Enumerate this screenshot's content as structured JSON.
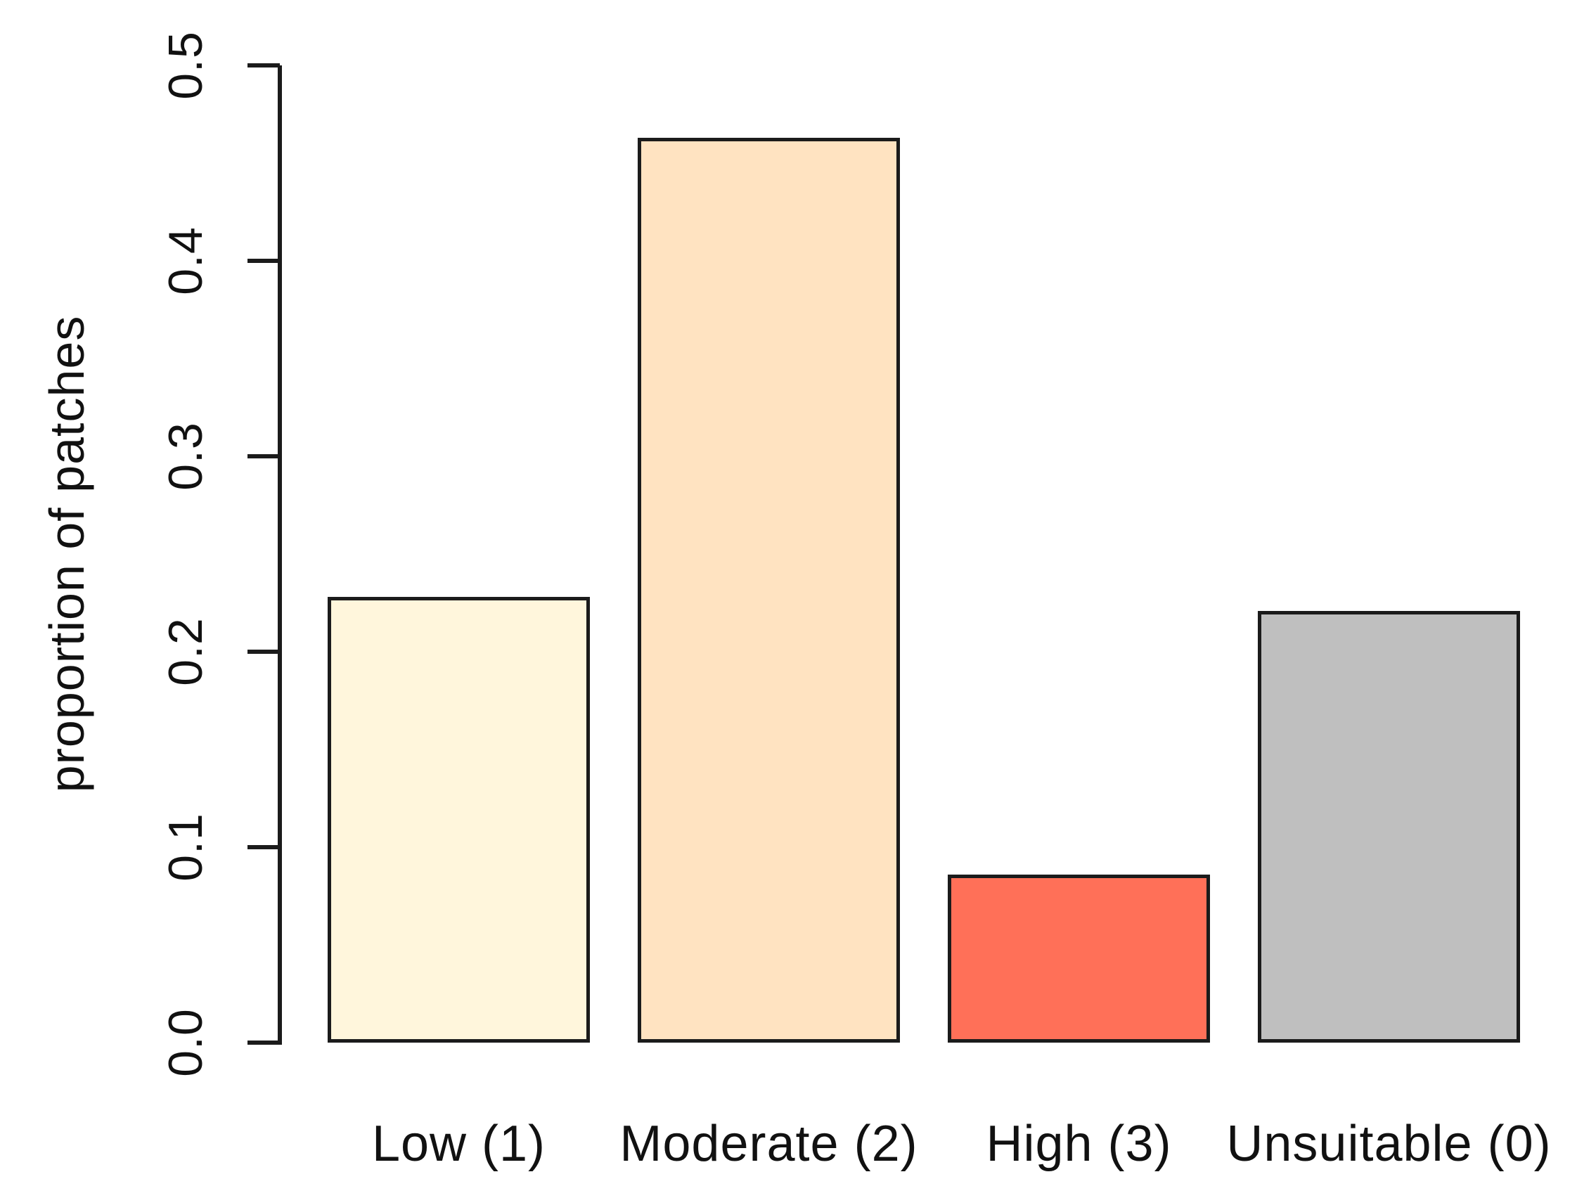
{
  "chart_data": {
    "type": "bar",
    "title": "",
    "xlabel": "",
    "ylabel": "proportion of patches",
    "categories": [
      "Low (1)",
      "Moderate (2)",
      "High (3)",
      "Unsuitable (0)"
    ],
    "values": [
      0.228,
      0.463,
      0.086,
      0.221
    ],
    "bar_colors": [
      "#FFF6DC",
      "#FFE3C1",
      "#FF7058",
      "#BFBFBF"
    ],
    "bar_border_color": "#1b1b1b",
    "axis_color": "#1b1b1b",
    "text_color": "#111111",
    "background_color": "#ffffff",
    "ylim": [
      0,
      0.5
    ],
    "ytick_labels": [
      "0.0",
      "0.1",
      "0.2",
      "0.3",
      "0.4",
      "0.5"
    ],
    "grid": false,
    "legend_position": "none"
  }
}
